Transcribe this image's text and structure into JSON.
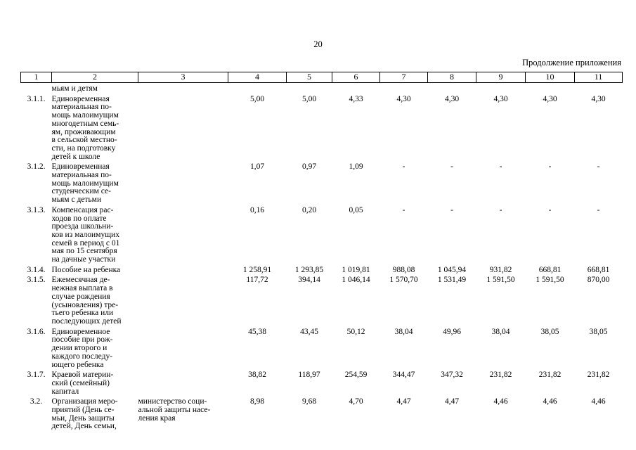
{
  "page": {
    "number": "20",
    "continuation_label": "Продолжение приложения"
  },
  "table": {
    "columns": [
      "1",
      "2",
      "3",
      "4",
      "5",
      "6",
      "7",
      "8",
      "9",
      "10",
      "11"
    ],
    "carryover_text": "мьям и детям",
    "rows": [
      {
        "num": "3.1.1.",
        "name": "Единовременная\nматериальная по-\nмощь малоимущим\nмногодетным семь-\nям, проживающим\nв сельской местно-\nсти, на подготовку\nдетей к школе",
        "executor": "",
        "values": [
          "5,00",
          "5,00",
          "4,33",
          "4,30",
          "4,30",
          "4,30",
          "4,30",
          "4,30"
        ]
      },
      {
        "num": "3.1.2.",
        "name": "Единовременная\nматериальная по-\nмощь малоимущим\nстуденческим се-\nмьям с детьми",
        "executor": "",
        "values": [
          "1,07",
          "0,97",
          "1,09",
          "-",
          "-",
          "-",
          "-",
          "-"
        ]
      },
      {
        "num": "3.1.3.",
        "name": "Компенсация рас-\nходов по оплате\nпроезда школьни-\nков из малоимущих\nсемей в период с 01\nмая по 15 сентября\nна дачные участки",
        "executor": "",
        "values": [
          "0,16",
          "0,20",
          "0,05",
          "-",
          "-",
          "-",
          "-",
          "-"
        ]
      },
      {
        "num": "3.1.4.",
        "name": "Пособие на ребенка",
        "executor": "",
        "values": [
          "1 258,91",
          "1 293,85",
          "1 019,81",
          "988,08",
          "1 045,94",
          "931,82",
          "668,81",
          "668,81"
        ]
      },
      {
        "num": "3.1.5.",
        "name": "Ежемесячная де-\nнежная выплата в\nслучае рождения\n(усыновления) тре-\nтьего ребенка или\nпоследующих детей",
        "executor": "",
        "values": [
          "117,72",
          "394,14",
          "1 046,14",
          "1 570,70",
          "1 531,49",
          "1 591,50",
          "1 591,50",
          "870,00"
        ]
      },
      {
        "num": "3.1.6.",
        "name": "Единовременное\nпособие при рож-\nдении второго и\nкаждого последу-\nющего ребенка",
        "executor": "",
        "values": [
          "45,38",
          "43,45",
          "50,12",
          "38,04",
          "49,96",
          "38,04",
          "38,05",
          "38,05"
        ]
      },
      {
        "num": "3.1.7.",
        "name": "Краевой материн-\nский (семейный)\nкапитал",
        "executor": "",
        "values": [
          "38,82",
          "118,97",
          "254,59",
          "344,47",
          "347,32",
          "231,82",
          "231,82",
          "231,82"
        ]
      },
      {
        "num": "3.2.",
        "name": "Организация меро-\nприятий (День се-\nмьи, День защиты\nдетей, День семьи,",
        "executor": "министерство соци-\nальной защиты насе-\nления края",
        "values": [
          "8,98",
          "9,68",
          "4,70",
          "4,47",
          "4,47",
          "4,46",
          "4,46",
          "4,46"
        ]
      }
    ]
  }
}
